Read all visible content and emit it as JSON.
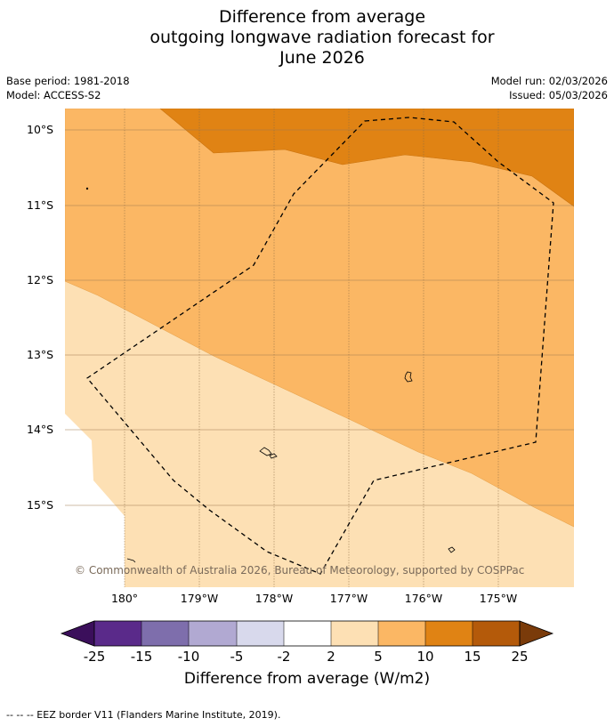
{
  "title": {
    "line1": "Difference from average",
    "line2": "outgoing longwave radiation forecast for",
    "line3": "June 2026"
  },
  "meta": {
    "base_period": "Base period: 1981-2018",
    "model": "Model: ACCESS-S2",
    "model_run": "Model run: 02/03/2026",
    "issued": "Issued: 05/03/2026"
  },
  "axes": {
    "lat_labels": [
      "10°S",
      "11°S",
      "12°S",
      "13°S",
      "14°S",
      "15°S"
    ],
    "lon_labels": [
      "180°",
      "179°W",
      "178°W",
      "177°W",
      "176°W",
      "175°W"
    ]
  },
  "copyright": "© Commonwealth of Australia 2026, Bureau of Meteorology, supported by COSPPac",
  "colorbar": {
    "ticks": [
      "-25",
      "-15",
      "-10",
      "-5",
      "-2",
      "2",
      "5",
      "10",
      "15",
      "25"
    ],
    "title": "Difference from average (W/m2)",
    "colors": [
      "#3b0f5b",
      "#5a2a8a",
      "#7e6eac",
      "#b1a9d2",
      "#d8d9ec",
      "#ffffff",
      "#fde0b4",
      "#fbb764",
      "#e08314",
      "#b45a0a",
      "#7a3b0a"
    ]
  },
  "fill_colors": {
    "band_2_5": "#fde0b4",
    "band_5_10": "#fbb764",
    "band_10_15": "#e08314"
  },
  "footnote": "--  --  -- EEZ border V11 (Flanders Marine Institute, 2019)."
}
